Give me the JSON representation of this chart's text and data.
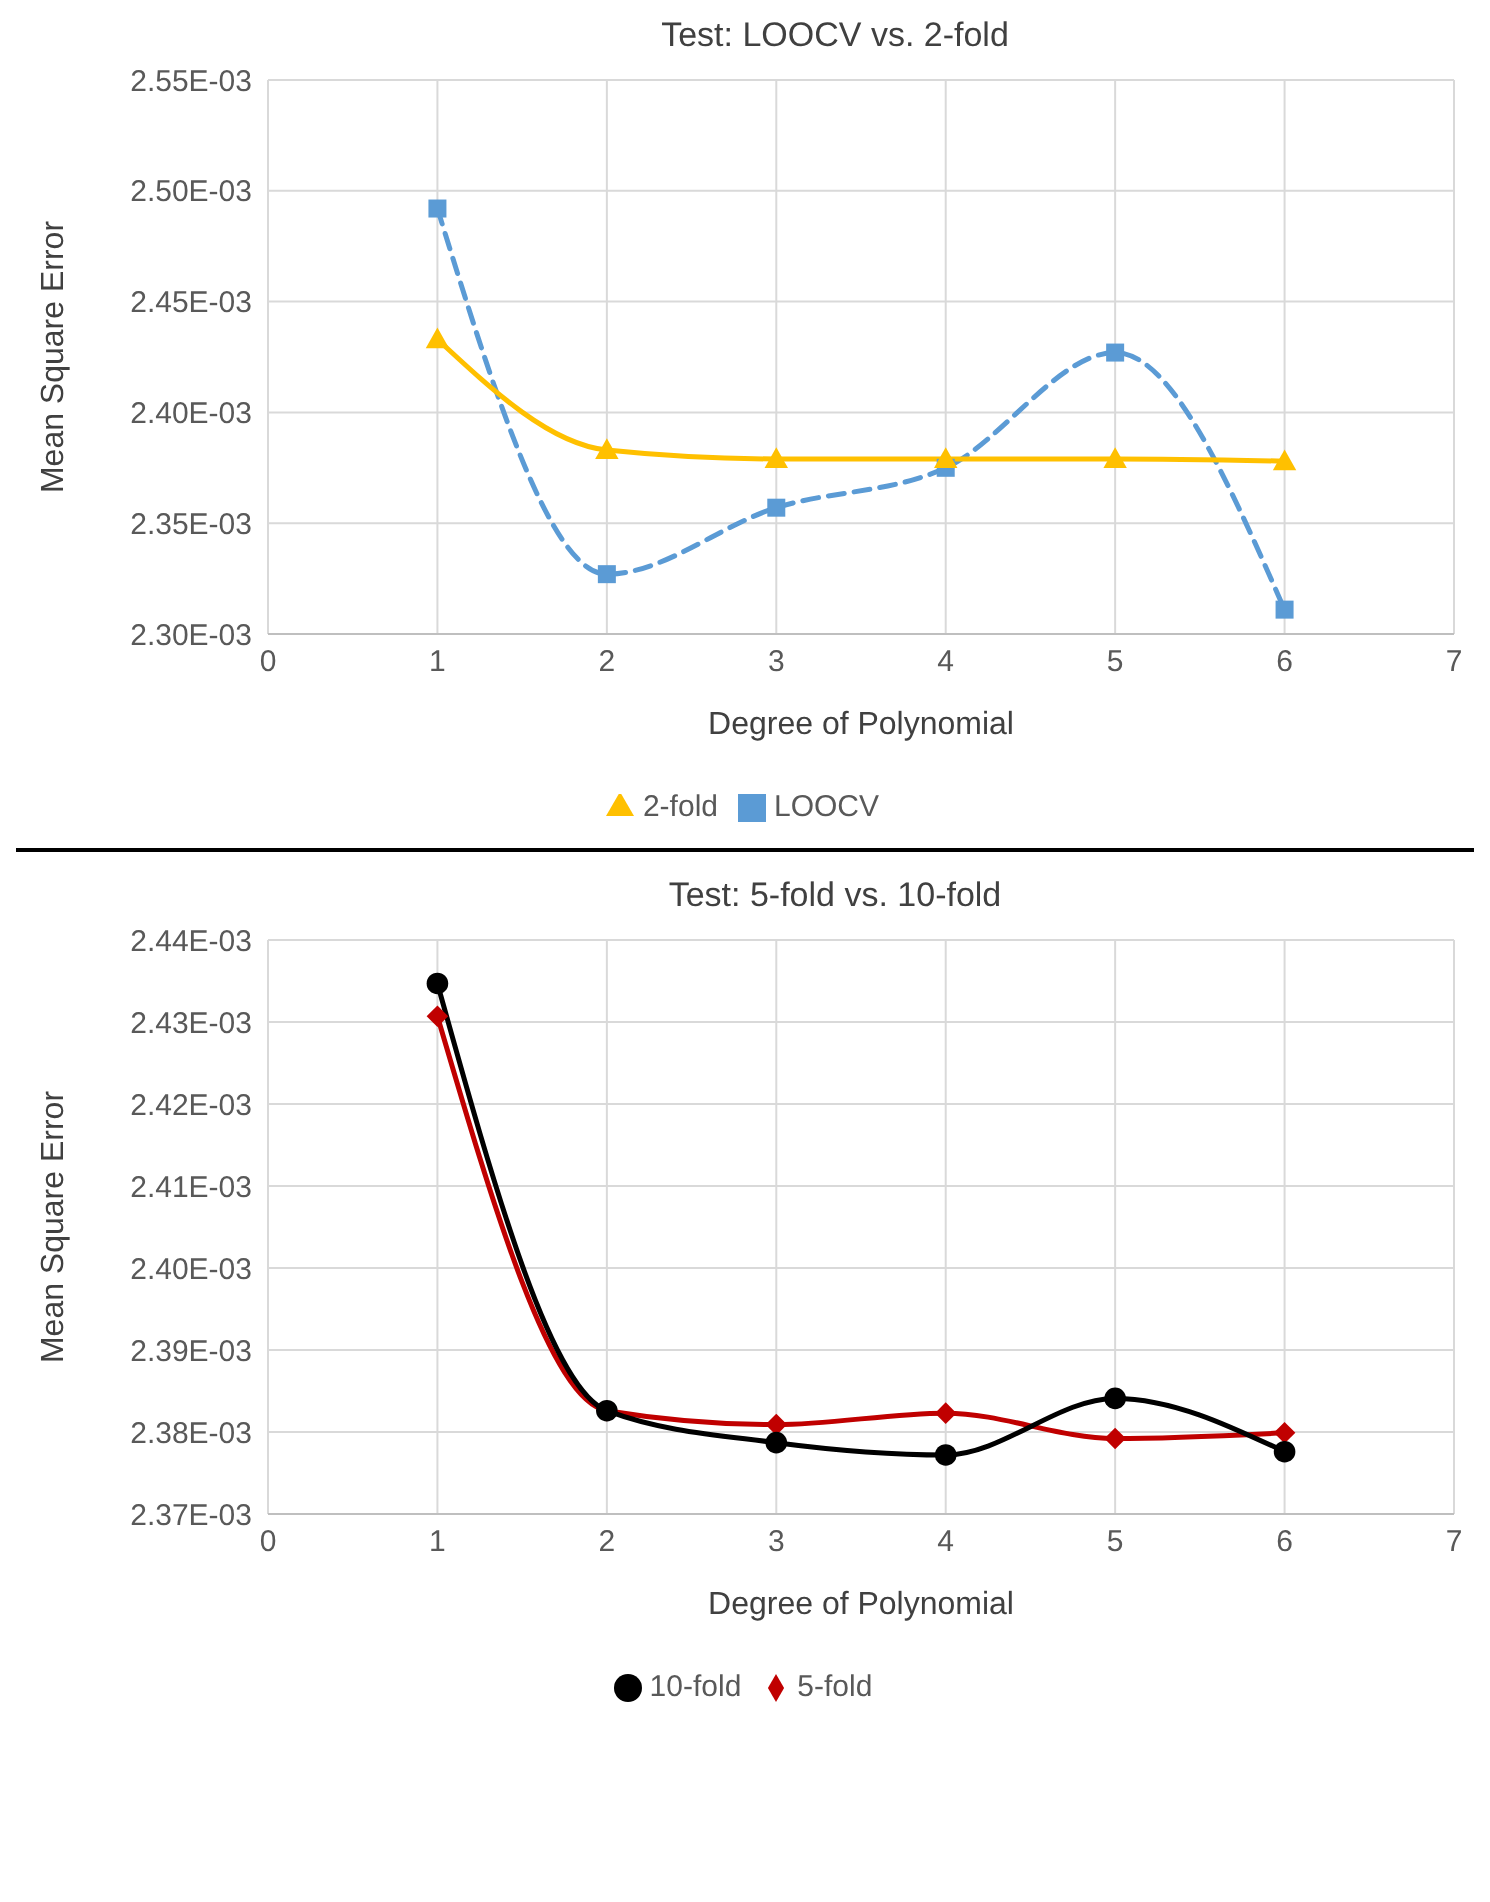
{
  "chart_data": [
    {
      "type": "line",
      "title": "Test: LOOCV vs. 2-fold",
      "xlabel": "Degree of Polynomial",
      "ylabel": "Mean Square Error",
      "x": [
        1,
        2,
        3,
        4,
        5,
        6
      ],
      "xlim": [
        0,
        7
      ],
      "xticks": [
        0,
        1,
        2,
        3,
        4,
        5,
        6,
        7
      ],
      "ylim": [
        0.0023,
        0.00255
      ],
      "yticks": [
        {
          "value": 0.0023,
          "label": "2.30E-03"
        },
        {
          "value": 0.00235,
          "label": "2.35E-03"
        },
        {
          "value": 0.0024,
          "label": "2.40E-03"
        },
        {
          "value": 0.00245,
          "label": "2.45E-03"
        },
        {
          "value": 0.0025,
          "label": "2.50E-03"
        },
        {
          "value": 0.00255,
          "label": "2.55E-03"
        }
      ],
      "grid": true,
      "legend": "bottom",
      "series": [
        {
          "name": "LOOCV",
          "color": "#5b9bd5",
          "marker": "square",
          "line_style": "dashed",
          "values": [
            0.002492,
            0.002327,
            0.002357,
            0.002375,
            0.002427,
            0.002311
          ]
        },
        {
          "name": "2-fold",
          "color": "#ffc000",
          "marker": "triangle",
          "line_style": "solid",
          "values": [
            0.002433,
            0.002383,
            0.002379,
            0.002379,
            0.002379,
            0.002378
          ]
        }
      ]
    },
    {
      "type": "line",
      "title": "Test: 5-fold vs. 10-fold",
      "xlabel": "Degree of Polynomial",
      "ylabel": "Mean Square Error",
      "x": [
        1,
        2,
        3,
        4,
        5,
        6
      ],
      "xlim": [
        0,
        7
      ],
      "xticks": [
        0,
        1,
        2,
        3,
        4,
        5,
        6,
        7
      ],
      "ylim": [
        0.00237,
        0.00244
      ],
      "yticks": [
        {
          "value": 0.00237,
          "label": "2.37E-03"
        },
        {
          "value": 0.00238,
          "label": "2.38E-03"
        },
        {
          "value": 0.00239,
          "label": "2.39E-03"
        },
        {
          "value": 0.0024,
          "label": "2.40E-03"
        },
        {
          "value": 0.00241,
          "label": "2.41E-03"
        },
        {
          "value": 0.00242,
          "label": "2.42E-03"
        },
        {
          "value": 0.00243,
          "label": "2.43E-03"
        },
        {
          "value": 0.00244,
          "label": "2.44E-03"
        }
      ],
      "grid": true,
      "legend": "bottom",
      "series": [
        {
          "name": "5-fold",
          "color": "#c00000",
          "marker": "diamond",
          "line_style": "solid",
          "values": [
            0.0024307,
            0.0023826,
            0.0023809,
            0.0023823,
            0.0023792,
            0.0023799
          ]
        },
        {
          "name": "10-fold",
          "color": "#000000",
          "marker": "circle",
          "line_style": "solid",
          "values": [
            0.0024347,
            0.0023826,
            0.0023787,
            0.0023772,
            0.0023841,
            0.0023776
          ]
        }
      ]
    }
  ]
}
